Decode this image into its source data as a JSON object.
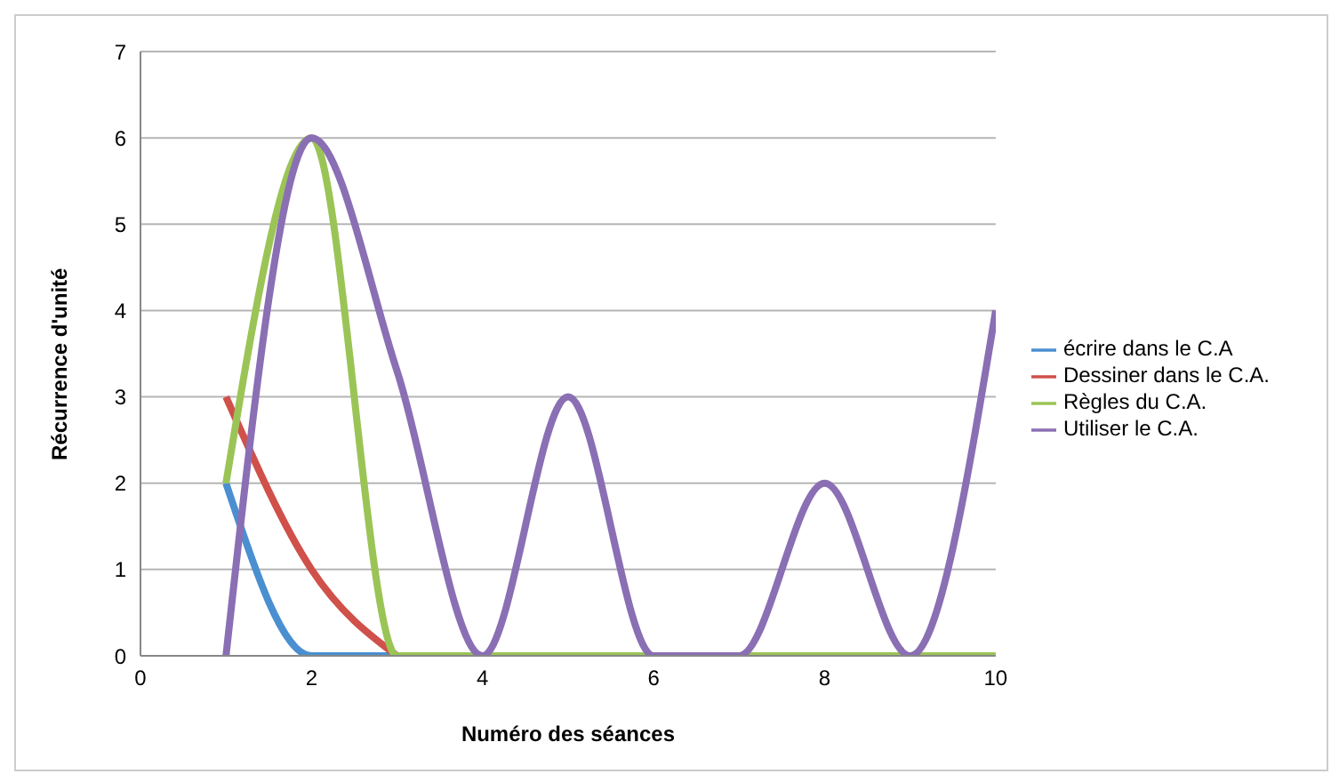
{
  "chart_data": {
    "type": "line",
    "xlabel": "Numéro des séances",
    "ylabel": "Récurrence d'unité",
    "x": [
      1,
      2,
      3,
      4,
      5,
      6,
      7,
      8,
      9,
      10
    ],
    "series": [
      {
        "name": "écrire dans le C.A",
        "color": "#4a8fd0",
        "values": [
          2,
          0,
          0,
          null,
          null,
          null,
          null,
          null,
          null,
          null
        ]
      },
      {
        "name": "Dessiner dans le C.A.",
        "color": "#d0504a",
        "values": [
          3,
          1,
          0,
          null,
          null,
          null,
          null,
          null,
          null,
          null
        ]
      },
      {
        "name": "Règles du C.A.",
        "color": "#9bc456",
        "values": [
          2,
          6,
          0,
          0,
          0,
          0,
          0,
          0,
          0,
          0
        ]
      },
      {
        "name": "Utiliser le C.A.",
        "color": "#8a6fb4",
        "values": [
          0,
          6,
          3.3,
          0,
          3,
          0,
          0,
          2,
          0,
          4
        ]
      }
    ],
    "xlim": [
      0,
      10
    ],
    "xticks": [
      0,
      2,
      4,
      6,
      8,
      10
    ],
    "ylim": [
      0,
      7
    ],
    "yticks": [
      0,
      1,
      2,
      3,
      4,
      5,
      6,
      7
    ],
    "grid": "y",
    "legend": "right",
    "marker": "none",
    "line_style": "solid"
  }
}
